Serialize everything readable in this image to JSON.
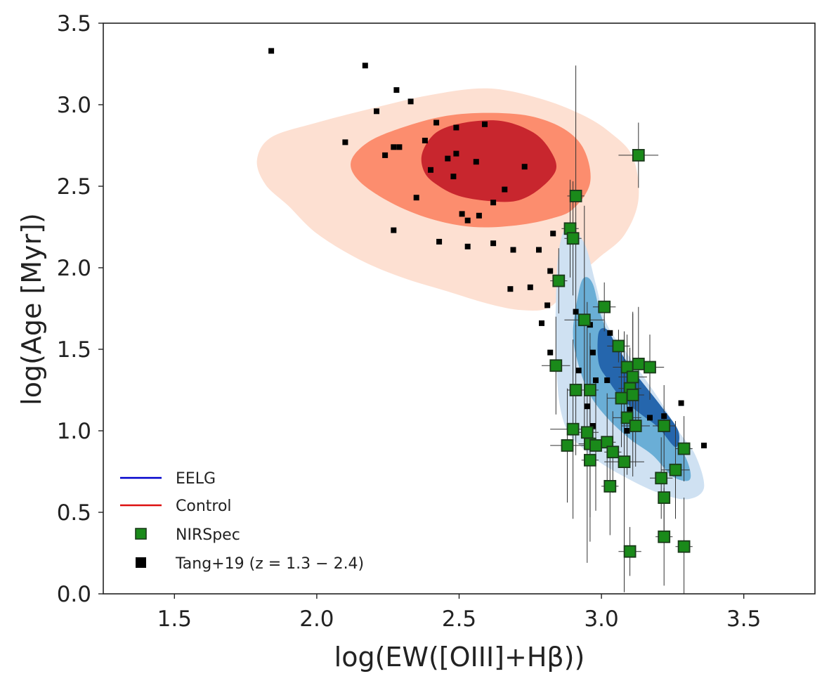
{
  "chart_data": {
    "type": "scatter",
    "title": "",
    "xlabel": "log(EW([OIII]+Hβ))",
    "ylabel": "log(Age [Myr])",
    "xlim": [
      1.25,
      3.75
    ],
    "ylim": [
      0.0,
      3.5
    ],
    "xticks": [
      "1.5",
      "2.0",
      "2.5",
      "3.0",
      "3.5"
    ],
    "yticks": [
      "0.0",
      "0.5",
      "1.0",
      "1.5",
      "2.0",
      "2.5",
      "3.0",
      "3.5"
    ],
    "grid": false,
    "legend_position": "lower-left",
    "legend": [
      {
        "label": "EELG",
        "marker": "line",
        "color": "#0000cc"
      },
      {
        "label": "Control",
        "marker": "line",
        "color": "#dd1111"
      },
      {
        "label": "NIRSpec",
        "marker": "square",
        "color": "#1a8a1a"
      },
      {
        "label": "Tang+19 (z = 1.3 − 2.4)",
        "marker": "square",
        "color": "#000000"
      }
    ],
    "contours": {
      "Control": {
        "colors": [
          "#fde0d2",
          "#fc8d6e",
          "#c8262e"
        ],
        "levels": [
          [
            [
              1.79,
              2.66
            ],
            [
              1.82,
              2.51
            ],
            [
              1.9,
              2.38
            ],
            [
              2.0,
              2.21
            ],
            [
              2.15,
              2.05
            ],
            [
              2.3,
              1.94
            ],
            [
              2.45,
              1.86
            ],
            [
              2.6,
              1.78
            ],
            [
              2.72,
              1.74
            ],
            [
              2.82,
              1.76
            ],
            [
              2.9,
              1.92
            ],
            [
              2.99,
              2.06
            ],
            [
              3.08,
              2.2
            ],
            [
              3.13,
              2.42
            ],
            [
              3.11,
              2.68
            ],
            [
              3.03,
              2.83
            ],
            [
              2.93,
              2.94
            ],
            [
              2.78,
              3.04
            ],
            [
              2.6,
              3.1
            ],
            [
              2.4,
              3.06
            ],
            [
              2.2,
              2.98
            ],
            [
              2.0,
              2.89
            ],
            [
              1.84,
              2.8
            ]
          ],
          [
            [
              2.12,
              2.65
            ],
            [
              2.15,
              2.53
            ],
            [
              2.26,
              2.4
            ],
            [
              2.4,
              2.3
            ],
            [
              2.55,
              2.25
            ],
            [
              2.7,
              2.26
            ],
            [
              2.82,
              2.3
            ],
            [
              2.9,
              2.36
            ],
            [
              2.96,
              2.52
            ],
            [
              2.94,
              2.72
            ],
            [
              2.87,
              2.85
            ],
            [
              2.75,
              2.93
            ],
            [
              2.6,
              2.95
            ],
            [
              2.45,
              2.93
            ],
            [
              2.3,
              2.86
            ],
            [
              2.18,
              2.77
            ]
          ],
          [
            [
              2.37,
              2.7
            ],
            [
              2.38,
              2.58
            ],
            [
              2.43,
              2.5
            ],
            [
              2.5,
              2.44
            ],
            [
              2.6,
              2.41
            ],
            [
              2.7,
              2.41
            ],
            [
              2.78,
              2.48
            ],
            [
              2.84,
              2.6
            ],
            [
              2.82,
              2.72
            ],
            [
              2.76,
              2.83
            ],
            [
              2.65,
              2.9
            ],
            [
              2.52,
              2.89
            ],
            [
              2.42,
              2.83
            ]
          ]
        ]
      },
      "EELG": {
        "colors": [
          "#cfe1f2",
          "#6aaed6",
          "#2566ad"
        ],
        "levels": [
          [
            [
              2.88,
              2.25
            ],
            [
              2.85,
              2.1
            ],
            [
              2.84,
              1.8
            ],
            [
              2.84,
              1.55
            ],
            [
              2.85,
              1.2
            ],
            [
              2.88,
              1.0
            ],
            [
              2.93,
              0.9
            ],
            [
              3.0,
              0.8
            ],
            [
              3.1,
              0.7
            ],
            [
              3.2,
              0.62
            ],
            [
              3.3,
              0.58
            ],
            [
              3.36,
              0.65
            ],
            [
              3.33,
              0.85
            ],
            [
              3.27,
              1.0
            ],
            [
              3.2,
              1.2
            ],
            [
              3.1,
              1.45
            ],
            [
              3.02,
              1.65
            ],
            [
              2.98,
              1.9
            ],
            [
              2.94,
              2.15
            ]
          ],
          [
            [
              2.92,
              1.85
            ],
            [
              2.9,
              1.6
            ],
            [
              2.92,
              1.4
            ],
            [
              2.96,
              1.22
            ],
            [
              3.02,
              1.08
            ],
            [
              3.1,
              0.95
            ],
            [
              3.18,
              0.85
            ],
            [
              3.25,
              0.72
            ],
            [
              3.31,
              0.7
            ],
            [
              3.3,
              0.82
            ],
            [
              3.24,
              1.0
            ],
            [
              3.14,
              1.25
            ],
            [
              3.06,
              1.45
            ],
            [
              3.0,
              1.7
            ],
            [
              2.97,
              1.9
            ],
            [
              2.94,
              1.94
            ]
          ],
          [
            [
              2.99,
              1.6
            ],
            [
              2.99,
              1.42
            ],
            [
              3.02,
              1.32
            ],
            [
              3.07,
              1.2
            ],
            [
              3.14,
              1.1
            ],
            [
              3.2,
              1.02
            ],
            [
              3.26,
              0.9
            ],
            [
              3.27,
              1.0
            ],
            [
              3.21,
              1.15
            ],
            [
              3.12,
              1.35
            ],
            [
              3.06,
              1.5
            ],
            [
              3.02,
              1.62
            ]
          ]
        ]
      }
    },
    "series": [
      {
        "name": "Tang+19 (z = 1.3 − 2.4)",
        "color": "#000000",
        "x": [
          1.84,
          2.17,
          2.28,
          2.33,
          2.21,
          2.1,
          2.24,
          2.27,
          2.29,
          2.38,
          2.42,
          2.49,
          2.59,
          2.46,
          2.49,
          2.4,
          2.48,
          2.56,
          2.73,
          2.66,
          2.35,
          2.62,
          2.51,
          2.53,
          2.57,
          2.27,
          2.43,
          2.53,
          2.62,
          2.69,
          2.78,
          2.83,
          2.82,
          2.68,
          2.75,
          2.81,
          2.79,
          2.82,
          2.91,
          2.96,
          2.97,
          2.92,
          2.98,
          3.03,
          2.97,
          3.02,
          2.95,
          3.1,
          3.17,
          3.22,
          3.28,
          3.36,
          3.09
        ],
        "y": [
          3.33,
          3.24,
          3.09,
          3.02,
          2.96,
          2.77,
          2.69,
          2.74,
          2.74,
          2.78,
          2.89,
          2.86,
          2.88,
          2.67,
          2.7,
          2.6,
          2.56,
          2.65,
          2.62,
          2.48,
          2.43,
          2.4,
          2.33,
          2.29,
          2.32,
          2.23,
          2.16,
          2.13,
          2.15,
          2.11,
          2.11,
          2.21,
          1.98,
          1.87,
          1.88,
          1.77,
          1.66,
          1.48,
          1.73,
          1.65,
          1.48,
          1.37,
          1.31,
          1.6,
          1.03,
          1.31,
          1.15,
          1.13,
          1.08,
          1.09,
          1.17,
          0.91,
          1.0
        ]
      },
      {
        "name": "NIRSpec",
        "color": "#1a8a1a",
        "x": [
          3.13,
          2.91,
          2.89,
          2.9,
          2.85,
          3.01,
          2.94,
          3.06,
          3.09,
          3.13,
          3.17,
          3.11,
          3.1,
          2.91,
          2.96,
          3.07,
          2.84,
          3.09,
          3.12,
          3.11,
          3.22,
          2.9,
          2.95,
          2.88,
          3.29,
          2.96,
          3.02,
          2.98,
          3.04,
          2.96,
          3.08,
          3.26,
          3.21,
          3.22,
          3.03,
          3.22,
          3.29,
          3.1
        ],
        "y": [
          2.69,
          2.44,
          2.24,
          2.18,
          1.92,
          1.76,
          1.68,
          1.52,
          1.39,
          1.41,
          1.39,
          1.33,
          1.26,
          1.25,
          1.25,
          1.2,
          1.4,
          1.08,
          1.03,
          1.22,
          1.03,
          1.01,
          0.99,
          0.91,
          0.89,
          0.92,
          0.93,
          0.91,
          0.87,
          0.82,
          0.81,
          0.76,
          0.71,
          0.59,
          0.66,
          0.35,
          0.29,
          0.26
        ],
        "xerr": [
          0.07,
          0.03,
          0.03,
          0.03,
          0.03,
          0.04,
          0.07,
          0.04,
          0.05,
          0.04,
          0.05,
          0.05,
          0.04,
          0.03,
          0.03,
          0.05,
          0.05,
          0.05,
          0.05,
          0.04,
          0.04,
          0.08,
          0.04,
          0.06,
          0.03,
          0.04,
          0.03,
          0.05,
          0.03,
          0.03,
          0.07,
          0.05,
          0.04,
          0.02,
          0.03,
          0.03,
          0.03,
          0.04
        ],
        "yerr": [
          0.2,
          0.8,
          0.3,
          0.35,
          0.2,
          0.15,
          0.7,
          0.1,
          0.2,
          0.35,
          0.2,
          0.4,
          0.25,
          0.4,
          0.35,
          0.3,
          0.3,
          0.35,
          0.25,
          0.5,
          0.25,
          0.55,
          0.8,
          0.35,
          0.2,
          0.6,
          0.3,
          0.4,
          0.25,
          0.35,
          0.8,
          0.3,
          0.25,
          0.2,
          0.3,
          0.3,
          0.3,
          0.15
        ]
      }
    ]
  }
}
